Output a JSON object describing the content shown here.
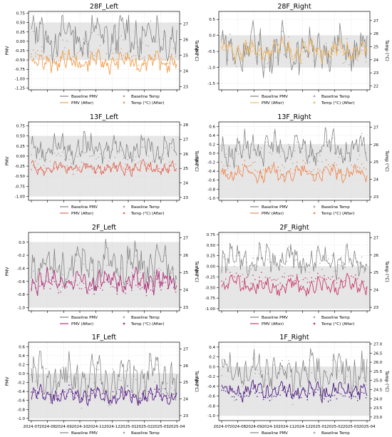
{
  "figure": {
    "panels": [
      {
        "title": "28F_Left",
        "pmv_ticks": [
          "0.75",
          "0.50",
          "0.25",
          "0.00",
          "-0.25",
          "-0.50",
          "-0.75",
          "-1.00",
          "-1.25"
        ],
        "temp_ticks": [
          "27",
          "26",
          "25",
          "24",
          "23"
        ],
        "legend": {
          "baseline_pmv": "Baseline PMV",
          "pmv_after": "PMV (After)",
          "baseline_temp": "Baseline Temp",
          "temp_after": "Temp (°C) (After)"
        },
        "ylabel_left": "PMV",
        "ylabel_right": "Temp (°C)"
      },
      {
        "title": "28F_Right",
        "pmv_ticks": [
          "0.5",
          "0.0",
          "-0.5",
          "-1.0",
          "-1.5"
        ],
        "temp_ticks": [
          "27",
          "26",
          "25",
          "24",
          "23",
          "22"
        ],
        "legend": {
          "baseline_pmv": "Baseline PMV",
          "pmv_after": "PMV (After)",
          "baseline_temp": "Baseline Temp",
          "temp_after": "Temp (°C) (After)"
        },
        "ylabel_left": "PMV",
        "ylabel_right": "Temp (°C)"
      },
      {
        "title": "13F_Left",
        "pmv_ticks": [
          "0.75",
          "0.50",
          "0.25",
          "0.00",
          "-0.25",
          "-0.50",
          "-0.75",
          "-1.00"
        ],
        "temp_ticks": [
          "28",
          "27",
          "26",
          "25",
          "24",
          "23"
        ],
        "legend": {
          "baseline_pmv": "Baseline PMV",
          "pmv_after": "PMV (After)",
          "baseline_temp": "Baseline Temp",
          "temp_after": "Temp (°C) (After)"
        },
        "ylabel_left": "PMV",
        "ylabel_right": "Temp (°C)"
      },
      {
        "title": "13F_Right",
        "pmv_ticks": [
          "0.6",
          "0.4",
          "0.2",
          "0.0",
          "-0.2",
          "-0.4",
          "-0.6",
          "-0.8",
          "-1.0"
        ],
        "temp_ticks": [
          "27",
          "26",
          "25",
          "24",
          "23"
        ],
        "legend": {
          "baseline_pmv": "Baseline PMV",
          "pmv_after": "PMV (After)",
          "baseline_temp": "Baseline Temp",
          "temp_after": "Temp (°C) (After)"
        },
        "ylabel_left": "PMV",
        "ylabel_right": "Temp (°C)"
      },
      {
        "title": "2F_Left",
        "pmv_ticks": [
          "0.0",
          "-0.2",
          "-0.4",
          "-0.6",
          "-0.8",
          "-1.0"
        ],
        "temp_ticks": [
          "27",
          "26",
          "25",
          "24",
          "23"
        ],
        "legend": {
          "baseline_pmv": "Baseline PMV",
          "pmv_after": "PMV (After)",
          "baseline_temp": "Baseline Temp",
          "temp_after": "Temp (°C) (After)"
        },
        "ylabel_left": "PMV",
        "ylabel_right": "Temp (°C)"
      },
      {
        "title": "2F_Right",
        "pmv_ticks": [
          "0.75",
          "0.50",
          "0.25",
          "0.00",
          "-0.25",
          "-0.50",
          "-0.75",
          "-1.00"
        ],
        "temp_ticks": [
          "27",
          "26",
          "25",
          "24",
          "23"
        ],
        "legend": {
          "baseline_pmv": "Baseline PMV",
          "pmv_after": "PMV (After)",
          "baseline_temp": "Baseline Temp",
          "temp_after": "Temp (°C) (After)"
        },
        "ylabel_left": "PMV",
        "ylabel_right": "Temp (°C)"
      },
      {
        "title": "1F_Left",
        "pmv_ticks": [
          "0.6",
          "0.4",
          "0.2",
          "0.0",
          "-0.2",
          "-0.4",
          "-0.6",
          "-0.8",
          "-1.0"
        ],
        "temp_ticks": [
          "27",
          "26",
          "25",
          "24",
          "23"
        ],
        "legend": {
          "baseline_pmv": "Baseline PMV",
          "pmv_after": "PMV (After)",
          "baseline_temp": "Baseline Temp",
          "temp_after": "Temp (°C) (After)"
        },
        "ylabel_left": "PMV",
        "ylabel_right": "Temp (°C)"
      },
      {
        "title": "1F_Right",
        "pmv_ticks": [
          "0.4",
          "0.2",
          "0.0",
          "-0.2",
          "-0.4",
          "-0.6",
          "-0.8",
          "-1.0"
        ],
        "temp_ticks": [
          "27.0",
          "26.5",
          "26.0",
          "25.5",
          "25.0",
          "24.5",
          "24.0",
          "23.5",
          "23.0"
        ],
        "legend": {
          "baseline_pmv": "Baseline PMV",
          "pmv_after": "PMV (After)",
          "baseline_temp": "Baseline Temp",
          "temp_after": "Temp (°C) (After)"
        },
        "ylabel_left": "PMV",
        "ylabel_right": "Temp (°C)"
      }
    ],
    "x_ticks": [
      "2024-07",
      "2024-08",
      "2024-09",
      "2024-10",
      "2024-11",
      "2024-12",
      "2025-01",
      "2025-02",
      "2025-03",
      "2025-04"
    ]
  },
  "chart_data": [
    {
      "type": "line",
      "title": "28F_Left",
      "x_range": [
        "2024-07",
        "2025-04"
      ],
      "ylim_pmv": [
        -1.3,
        0.8
      ],
      "ylim_temp": [
        22.8,
        27.8
      ],
      "comfort_band_pmv": [
        -0.5,
        0.5
      ],
      "band_color": "#e6e6e6",
      "after_color": "#f0a050",
      "grid": true,
      "series": [
        {
          "name": "Baseline PMV",
          "values_pmv_approx": {
            "mean": 0.15,
            "min": -1.2,
            "max": 0.7
          }
        },
        {
          "name": "PMV (After)",
          "values_pmv_approx": {
            "mean": -0.55,
            "min": -1.0,
            "max": -0.2
          }
        },
        {
          "name": "Baseline Temp",
          "values_temp_approx": {
            "mean": 25.6,
            "min": 23.5,
            "max": 27.2
          }
        },
        {
          "name": "Temp (°C) (After)",
          "values_temp_approx": {
            "mean": 24.8,
            "min": 24.0,
            "max": 25.5
          }
        }
      ]
    },
    {
      "type": "line",
      "title": "28F_Right",
      "x_range": [
        "2024-07",
        "2025-04"
      ],
      "ylim_pmv": [
        -1.7,
        0.75
      ],
      "ylim_temp": [
        21.7,
        27.7
      ],
      "comfort_band_pmv": [
        -1.0,
        0.0
      ],
      "band_color": "#e6e6e6",
      "after_color": "#f4b860",
      "grid": true,
      "series": [
        {
          "name": "Baseline PMV",
          "values_pmv_approx": {
            "mean": -0.45,
            "min": -1.5,
            "max": 0.65
          }
        },
        {
          "name": "PMV (After)",
          "values_pmv_approx": {
            "mean": -0.45,
            "min": -1.0,
            "max": 0.0
          }
        },
        {
          "name": "Baseline Temp",
          "values_temp_approx": {
            "mean": 24.5,
            "min": 22.3,
            "max": 26.6
          }
        },
        {
          "name": "Temp (°C) (After)",
          "values_temp_approx": {
            "mean": 24.5,
            "min": 23.5,
            "max": 25.5
          }
        }
      ]
    },
    {
      "type": "line",
      "title": "13F_Left",
      "x_range": [
        "2024-07",
        "2025-04"
      ],
      "ylim_pmv": [
        -1.1,
        0.85
      ],
      "ylim_temp": [
        22.8,
        28.2
      ],
      "comfort_band_pmv": [
        -1.0,
        0.5
      ],
      "band_color": "#e6e6e6",
      "after_color": "#e06a5a",
      "grid": true,
      "series": [
        {
          "name": "Baseline PMV",
          "values_pmv_approx": {
            "mean": 0.2,
            "min": -0.25,
            "max": 0.75
          }
        },
        {
          "name": "PMV (After)",
          "values_pmv_approx": {
            "mean": -0.3,
            "min": -0.55,
            "max": -0.05
          }
        },
        {
          "name": "Baseline Temp",
          "values_temp_approx": {
            "mean": 25.8,
            "min": 24.8,
            "max": 27.0
          }
        },
        {
          "name": "Temp (°C) (After)",
          "values_temp_approx": {
            "mean": 25.0,
            "min": 24.5,
            "max": 25.6
          }
        }
      ]
    },
    {
      "type": "line",
      "title": "13F_Right",
      "x_range": [
        "2024-07",
        "2025-04"
      ],
      "ylim_pmv": [
        -1.05,
        0.7
      ],
      "ylim_temp": [
        22.8,
        27.3
      ],
      "comfort_band_pmv": [
        -1.0,
        0.2
      ],
      "band_color": "#e6e6e6",
      "after_color": "#ee8a55",
      "grid": true,
      "series": [
        {
          "name": "Baseline PMV",
          "values_pmv_approx": {
            "mean": 0.1,
            "min": -0.6,
            "max": 0.6
          }
        },
        {
          "name": "PMV (After)",
          "values_pmv_approx": {
            "mean": -0.45,
            "min": -0.75,
            "max": -0.2
          }
        },
        {
          "name": "Baseline Temp",
          "values_temp_approx": {
            "mean": 25.5,
            "min": 24.0,
            "max": 26.8
          }
        },
        {
          "name": "Temp (°C) (After)",
          "values_temp_approx": {
            "mean": 24.6,
            "min": 24.0,
            "max": 25.3
          }
        }
      ]
    },
    {
      "type": "line",
      "title": "2F_Left",
      "x_range": [
        "2024-07",
        "2025-04"
      ],
      "ylim_pmv": [
        -1.05,
        0.15
      ],
      "ylim_temp": [
        22.8,
        27.3
      ],
      "comfort_band_pmv": [
        -1.0,
        0.0
      ],
      "band_color": "#e6e6e6",
      "after_color": "#b0307a",
      "grid": true,
      "series": [
        {
          "name": "Baseline PMV",
          "values_pmv_approx": {
            "mean": -0.35,
            "min": -0.8,
            "max": 0.15
          }
        },
        {
          "name": "PMV (After)",
          "values_pmv_approx": {
            "mean": -0.6,
            "min": -0.85,
            "max": -0.3
          }
        },
        {
          "name": "Baseline Temp",
          "values_temp_approx": {
            "mean": 24.8,
            "min": 23.8,
            "max": 26.8
          }
        },
        {
          "name": "Temp (°C) (After)",
          "values_temp_approx": {
            "mean": 24.2,
            "min": 23.6,
            "max": 24.8
          }
        }
      ]
    },
    {
      "type": "line",
      "title": "2F_Right",
      "x_range": [
        "2024-07",
        "2025-04"
      ],
      "ylim_pmv": [
        -1.05,
        0.8
      ],
      "ylim_temp": [
        22.8,
        27.3
      ],
      "comfort_band_pmv": [
        -1.0,
        0.0
      ],
      "band_color": "#e6e6e6",
      "after_color": "#c83a6a",
      "grid": true,
      "series": [
        {
          "name": "Baseline PMV",
          "values_pmv_approx": {
            "mean": 0.15,
            "min": -0.4,
            "max": 0.7
          }
        },
        {
          "name": "PMV (After)",
          "values_pmv_approx": {
            "mean": -0.45,
            "min": -0.75,
            "max": -0.1
          }
        },
        {
          "name": "Baseline Temp",
          "values_temp_approx": {
            "mean": 25.6,
            "min": 24.5,
            "max": 26.8
          }
        },
        {
          "name": "Temp (°C) (After)",
          "values_temp_approx": {
            "mean": 24.6,
            "min": 24.0,
            "max": 25.2
          }
        }
      ]
    },
    {
      "type": "line",
      "title": "1F_Left",
      "x_range": [
        "2024-07",
        "2025-04"
      ],
      "ylim_pmv": [
        -1.05,
        0.7
      ],
      "ylim_temp": [
        22.7,
        27.4
      ],
      "comfort_band_pmv": [
        -1.0,
        0.0
      ],
      "band_color": "#e6e6e6",
      "after_color": "#5a1e8a",
      "grid": true,
      "series": [
        {
          "name": "Baseline PMV",
          "values_pmv_approx": {
            "mean": -0.1,
            "min": -0.95,
            "max": 0.6
          }
        },
        {
          "name": "PMV (After)",
          "values_pmv_approx": {
            "mean": -0.5,
            "min": -0.8,
            "max": -0.2
          }
        },
        {
          "name": "Baseline Temp",
          "values_temp_approx": {
            "mean": 25.0,
            "min": 23.0,
            "max": 26.8
          }
        },
        {
          "name": "Temp (°C) (After)",
          "values_temp_approx": {
            "mean": 24.3,
            "min": 23.6,
            "max": 25.0
          }
        }
      ]
    },
    {
      "type": "line",
      "title": "1F_Right",
      "x_range": [
        "2024-07",
        "2025-04"
      ],
      "ylim_pmv": [
        -1.1,
        0.5
      ],
      "ylim_temp": [
        22.8,
        27.1
      ],
      "comfort_band_pmv": [
        -1.0,
        0.0
      ],
      "band_color": "#e6e6e6",
      "after_color": "#4b1a80",
      "grid": true,
      "series": [
        {
          "name": "Baseline PMV",
          "values_pmv_approx": {
            "mean": -0.1,
            "min": -0.9,
            "max": 0.4
          }
        },
        {
          "name": "PMV (After)",
          "values_pmv_approx": {
            "mean": -0.5,
            "min": -0.8,
            "max": -0.2
          }
        },
        {
          "name": "Baseline Temp",
          "values_temp_approx": {
            "mean": 25.0,
            "min": 23.3,
            "max": 26.8
          }
        },
        {
          "name": "Temp (°C) (After)",
          "values_temp_approx": {
            "mean": 24.2,
            "min": 23.8,
            "max": 24.8
          }
        }
      ]
    }
  ]
}
